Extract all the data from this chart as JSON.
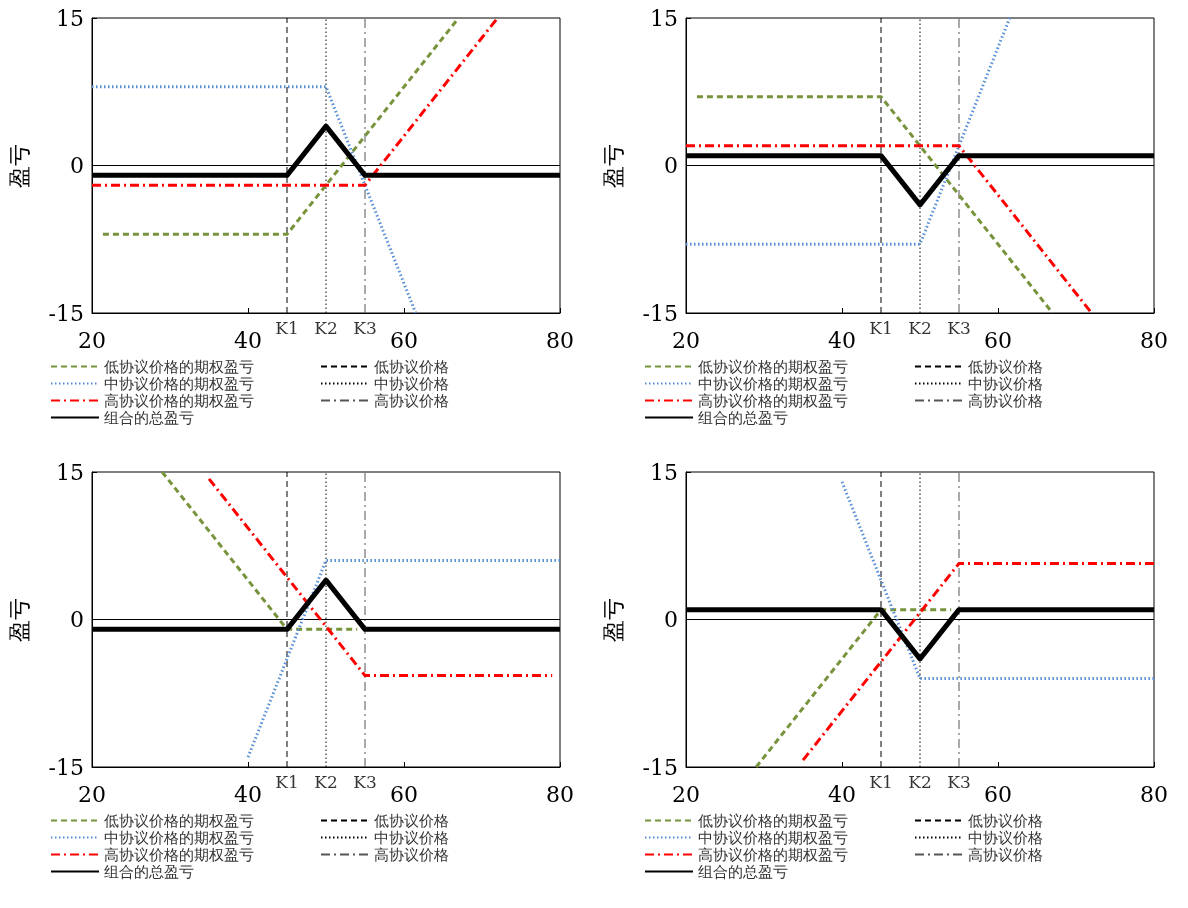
{
  "chart_data": [
    {
      "type": "line",
      "ylabel": "盈亏",
      "xlim": [
        20,
        80
      ],
      "xticks": [
        20,
        40,
        60,
        80
      ],
      "ylim": [
        -15,
        15
      ],
      "yticks": [
        -15,
        0,
        15
      ],
      "legend": "bottom",
      "marker": "none",
      "ref_lines": [
        {
          "axis": "y",
          "value": 0,
          "color": "#000000",
          "line_style": "solid"
        }
      ],
      "annotations": [
        {
          "text": "K1",
          "x": 45,
          "y": -15
        },
        {
          "text": "K2",
          "x": 50,
          "y": -15
        },
        {
          "text": "K3",
          "x": 55,
          "y": -15
        }
      ],
      "series": [
        {
          "name": "低协议价格的期权盈亏",
          "color": "#77933c",
          "line_style": "dashed",
          "x": [
            21.4,
            45,
            67
          ],
          "values": [
            -7,
            -7,
            15
          ]
        },
        {
          "name": "中协议价格的期权盈亏",
          "color": "#558ed5",
          "line_style": "dotted",
          "x": [
            20,
            50,
            61.5
          ],
          "values": [
            8,
            8,
            -15
          ]
        },
        {
          "name": "高协议价格的期权盈亏",
          "color": "#ff0000",
          "line_style": "dashdot",
          "x": [
            20,
            55,
            72
          ],
          "values": [
            -2,
            -2,
            15
          ]
        },
        {
          "name": "组合的总盈亏",
          "color": "#000000",
          "line_style": "solid",
          "x": [
            20,
            45,
            50,
            55,
            80
          ],
          "values": [
            -1,
            -1,
            4,
            -1,
            -1
          ]
        },
        {
          "name": "低协议价格",
          "color": "#000000",
          "line_style": "dashed",
          "x": [
            45,
            45
          ],
          "values": [
            -15,
            15
          ]
        },
        {
          "name": "中协议价格",
          "color": "#000000",
          "line_style": "dotted",
          "x": [
            50,
            50
          ],
          "values": [
            -15,
            15
          ]
        },
        {
          "name": "高协议价格",
          "color": "#555555",
          "line_style": "dashdot",
          "x": [
            55,
            55
          ],
          "values": [
            -15,
            15
          ]
        }
      ]
    },
    {
      "type": "line",
      "ylabel": "盈亏",
      "xlim": [
        20,
        80
      ],
      "xticks": [
        20,
        40,
        60,
        80
      ],
      "ylim": [
        -15,
        15
      ],
      "yticks": [
        -15,
        0,
        15
      ],
      "legend": "bottom",
      "marker": "none",
      "ref_lines": [
        {
          "axis": "y",
          "value": 0,
          "color": "#000000",
          "line_style": "solid"
        }
      ],
      "annotations": [
        {
          "text": "K1",
          "x": 45,
          "y": -15
        },
        {
          "text": "K2",
          "x": 50,
          "y": -15
        },
        {
          "text": "K3",
          "x": 55,
          "y": -15
        }
      ],
      "series": [
        {
          "name": "低协议价格的期权盈亏",
          "color": "#77933c",
          "line_style": "dashed",
          "x": [
            21.4,
            45,
            67
          ],
          "values": [
            7,
            7,
            -15
          ]
        },
        {
          "name": "中协议价格的期权盈亏",
          "color": "#558ed5",
          "line_style": "dotted",
          "x": [
            20,
            50,
            61.5
          ],
          "values": [
            -8,
            -8,
            15
          ]
        },
        {
          "name": "高协议价格的期权盈亏",
          "color": "#ff0000",
          "line_style": "dashdot",
          "x": [
            20,
            55,
            72
          ],
          "values": [
            2,
            2,
            -15
          ]
        },
        {
          "name": "组合的总盈亏",
          "color": "#000000",
          "line_style": "solid",
          "x": [
            20,
            45,
            50,
            55,
            80
          ],
          "values": [
            1,
            1,
            -4,
            1,
            1
          ]
        },
        {
          "name": "低协议价格",
          "color": "#000000",
          "line_style": "dashed",
          "x": [
            45,
            45
          ],
          "values": [
            -15,
            15
          ]
        },
        {
          "name": "中协议价格",
          "color": "#000000",
          "line_style": "dotted",
          "x": [
            50,
            50
          ],
          "values": [
            -15,
            15
          ]
        },
        {
          "name": "高协议价格",
          "color": "#555555",
          "line_style": "dashdot",
          "x": [
            55,
            55
          ],
          "values": [
            -15,
            15
          ]
        }
      ]
    },
    {
      "type": "line",
      "ylabel": "盈亏",
      "xlim": [
        20,
        80
      ],
      "xticks": [
        20,
        40,
        60,
        80
      ],
      "ylim": [
        -15,
        15
      ],
      "yticks": [
        -15,
        0,
        15
      ],
      "legend": "bottom",
      "marker": "none",
      "ref_lines": [
        {
          "axis": "y",
          "value": 0,
          "color": "#000000",
          "line_style": "solid"
        }
      ],
      "annotations": [
        {
          "text": "K1",
          "x": 45,
          "y": -15
        },
        {
          "text": "K2",
          "x": 50,
          "y": -15
        },
        {
          "text": "K3",
          "x": 55,
          "y": -15
        }
      ],
      "series": [
        {
          "name": "低协议价格的期权盈亏",
          "color": "#77933c",
          "line_style": "dashed",
          "x": [
            29,
            45,
            54
          ],
          "values": [
            15,
            -1,
            -1
          ]
        },
        {
          "name": "中协议价格的期权盈亏",
          "color": "#558ed5",
          "line_style": "dotted",
          "x": [
            40,
            50,
            80
          ],
          "values": [
            -14,
            6,
            6
          ]
        },
        {
          "name": "高协议价格的期权盈亏",
          "color": "#ff0000",
          "line_style": "dashdot",
          "x": [
            35,
            55,
            79
          ],
          "values": [
            14.3,
            -5.7,
            -5.7
          ]
        },
        {
          "name": "组合的总盈亏",
          "color": "#000000",
          "line_style": "solid",
          "x": [
            20,
            45,
            50,
            55,
            80
          ],
          "values": [
            -1,
            -1,
            4,
            -1,
            -1
          ]
        },
        {
          "name": "低协议价格",
          "color": "#000000",
          "line_style": "dashed",
          "x": [
            45,
            45
          ],
          "values": [
            -15,
            15
          ]
        },
        {
          "name": "中协议价格",
          "color": "#000000",
          "line_style": "dotted",
          "x": [
            50,
            50
          ],
          "values": [
            -15,
            15
          ]
        },
        {
          "name": "高协议价格",
          "color": "#555555",
          "line_style": "dashdot",
          "x": [
            55,
            55
          ],
          "values": [
            -15,
            15
          ]
        }
      ]
    },
    {
      "type": "line",
      "ylabel": "盈亏",
      "xlim": [
        20,
        80
      ],
      "xticks": [
        20,
        40,
        60,
        80
      ],
      "ylim": [
        -15,
        15
      ],
      "yticks": [
        -15,
        0,
        15
      ],
      "legend": "bottom",
      "marker": "none",
      "ref_lines": [
        {
          "axis": "y",
          "value": 0,
          "color": "#000000",
          "line_style": "solid"
        }
      ],
      "annotations": [
        {
          "text": "K1",
          "x": 45,
          "y": -15
        },
        {
          "text": "K2",
          "x": 50,
          "y": -15
        },
        {
          "text": "K3",
          "x": 55,
          "y": -15
        }
      ],
      "series": [
        {
          "name": "低协议价格的期权盈亏",
          "color": "#77933c",
          "line_style": "dashed",
          "x": [
            29,
            45,
            54
          ],
          "values": [
            -15,
            1,
            1
          ]
        },
        {
          "name": "中协议价格的期权盈亏",
          "color": "#558ed5",
          "line_style": "dotted",
          "x": [
            40,
            50,
            80
          ],
          "values": [
            14,
            -6,
            -6
          ]
        },
        {
          "name": "高协议价格的期权盈亏",
          "color": "#ff0000",
          "line_style": "dashdot",
          "x": [
            35,
            55,
            80
          ],
          "values": [
            -14.3,
            5.7,
            5.7
          ]
        },
        {
          "name": "组合的总盈亏",
          "color": "#000000",
          "line_style": "solid",
          "x": [
            20,
            45,
            50,
            55,
            80
          ],
          "values": [
            1,
            1,
            -4,
            1,
            1
          ]
        },
        {
          "name": "低协议价格",
          "color": "#000000",
          "line_style": "dashed",
          "x": [
            45,
            45
          ],
          "values": [
            -15,
            15
          ]
        },
        {
          "name": "中协议价格",
          "color": "#000000",
          "line_style": "dotted",
          "x": [
            50,
            50
          ],
          "values": [
            -15,
            15
          ]
        },
        {
          "name": "高协议价格",
          "color": "#555555",
          "line_style": "dashdot",
          "x": [
            55,
            55
          ],
          "values": [
            -15,
            15
          ]
        }
      ]
    }
  ]
}
